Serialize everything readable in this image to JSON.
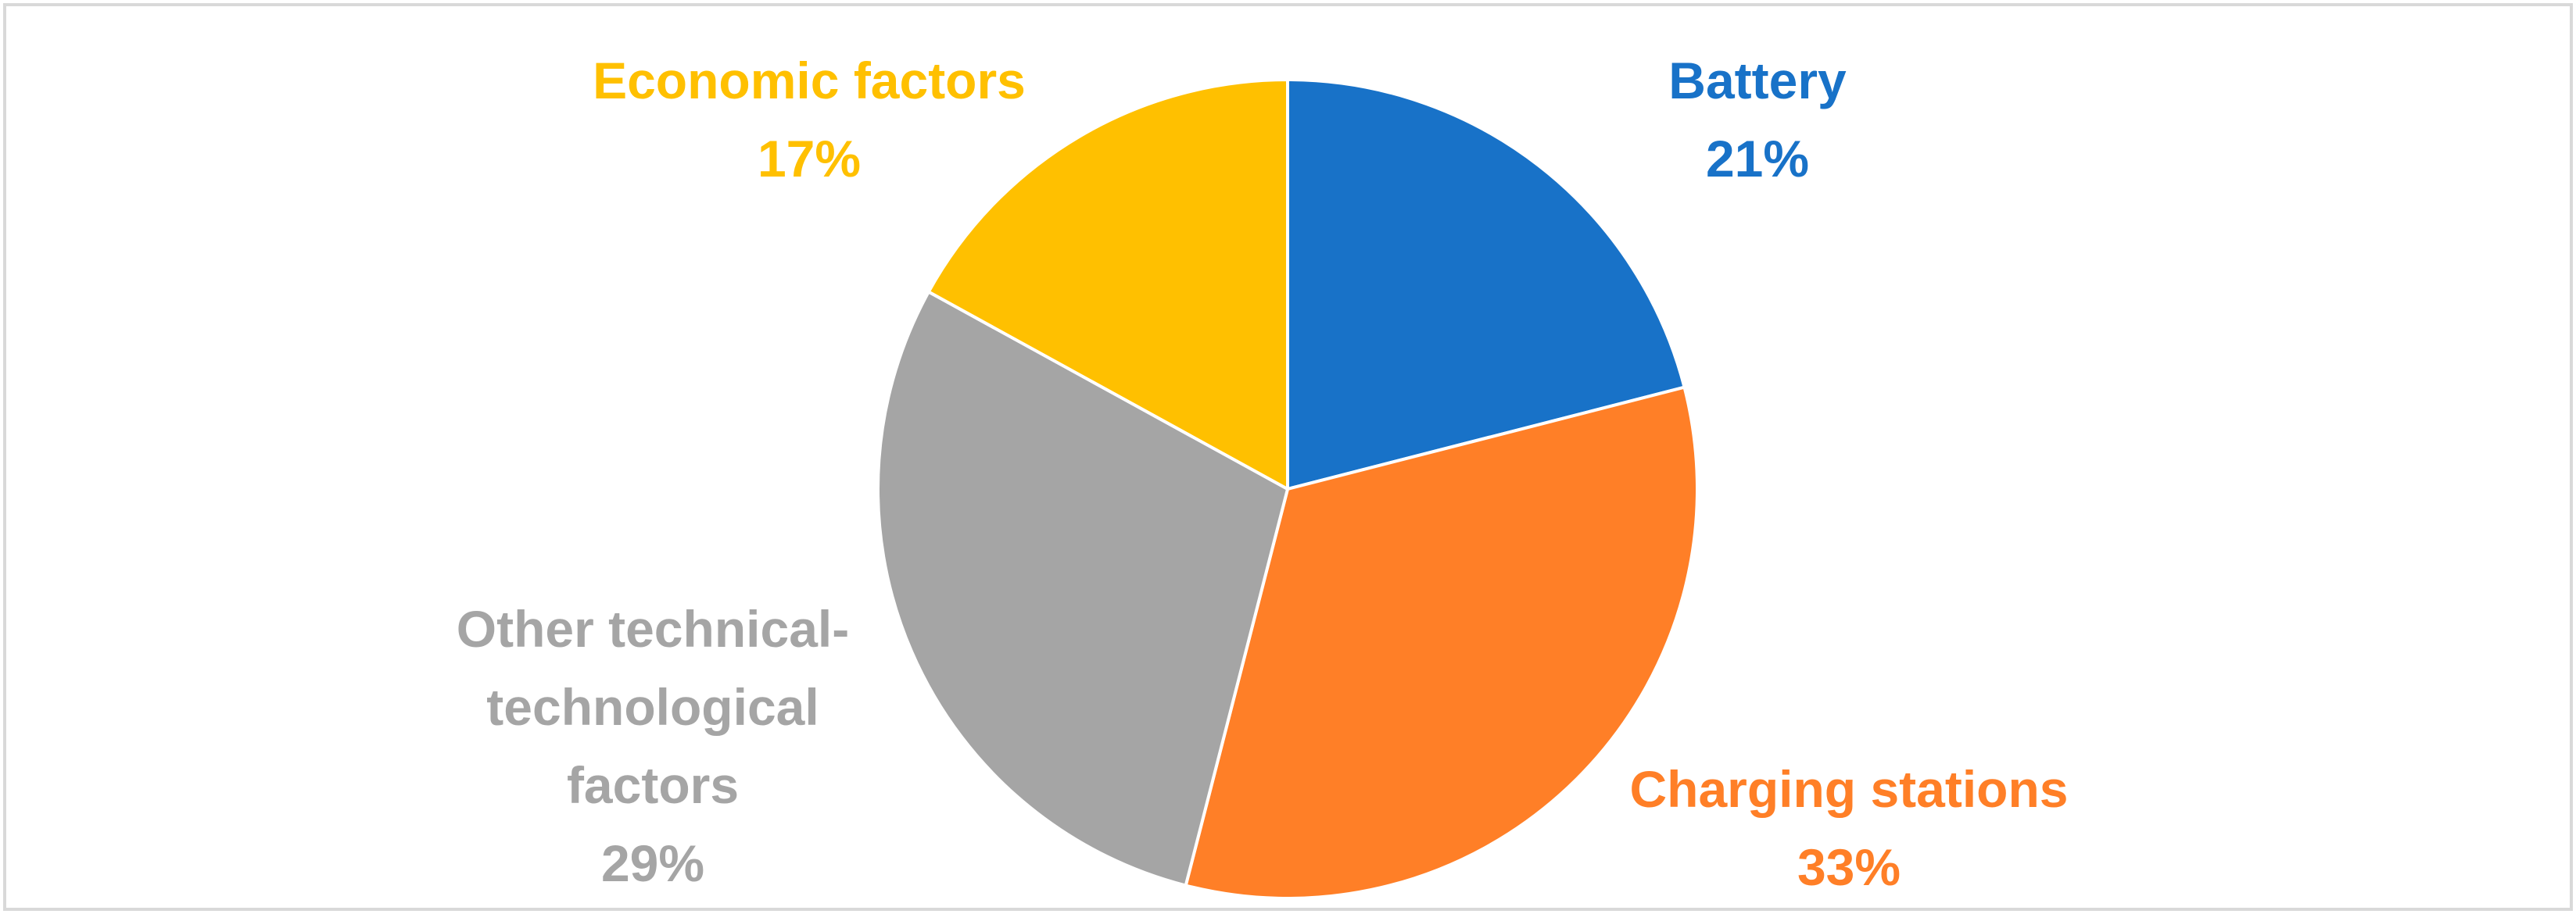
{
  "chart_data": {
    "type": "pie",
    "title": "",
    "slices": [
      {
        "label": "Battery",
        "lines": [
          "Battery"
        ],
        "pct_label": "21%",
        "value": 21,
        "color": "#1872C8"
      },
      {
        "label": "Charging stations",
        "lines": [
          "Charging stations"
        ],
        "pct_label": "33%",
        "value": 33,
        "color": "#FF7F27"
      },
      {
        "label": "Other technical-technological factors",
        "lines": [
          "Other technical-",
          "technological",
          "factors"
        ],
        "pct_label": "29%",
        "value": 29,
        "color": "#A5A5A5"
      },
      {
        "label": "Economic factors",
        "lines": [
          "Economic factors"
        ],
        "pct_label": "17%",
        "value": 17,
        "color": "#FFC000"
      }
    ],
    "start_angle": "12 o'clock",
    "direction": "clockwise",
    "legend": "none"
  }
}
